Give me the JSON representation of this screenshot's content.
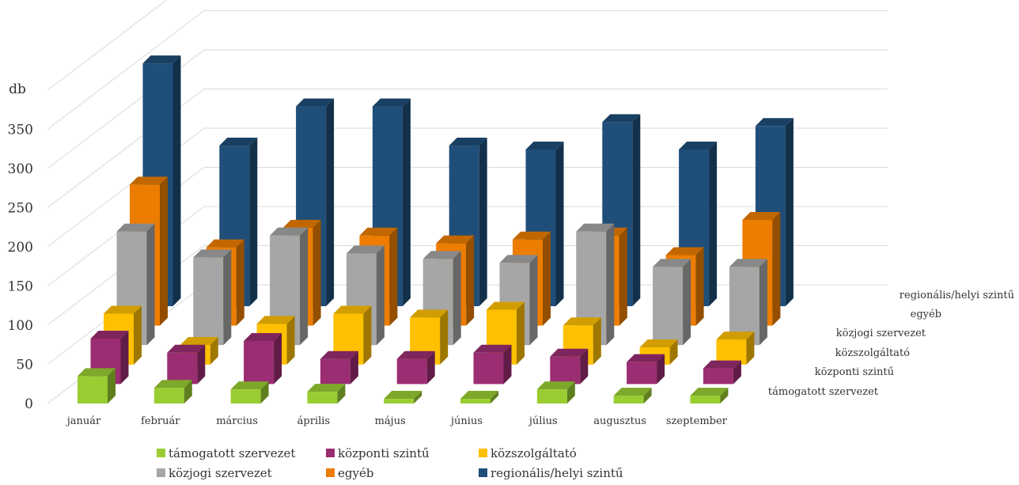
{
  "chart_data": {
    "type": "bar",
    "subtype": "3d-column",
    "title": "",
    "ylabel": "db",
    "ylim": [
      0,
      350
    ],
    "yticks": [
      0,
      50,
      100,
      150,
      200,
      250,
      300,
      350
    ],
    "grid": true,
    "legend_position": "bottom",
    "source_note": "",
    "categories": [
      "január",
      "február",
      "március",
      "április",
      "május",
      "június",
      "július",
      "augusztus",
      "szeptember"
    ],
    "series": [
      {
        "name": "támogatott szervezet",
        "color": "#9acd32",
        "values": [
          35,
          20,
          18,
          15,
          6,
          6,
          18,
          10,
          10
        ]
      },
      {
        "name": "központi szintű",
        "color": "#9b2d72",
        "values": [
          58,
          40,
          55,
          32,
          32,
          40,
          35,
          28,
          20
        ]
      },
      {
        "name": "közszolgáltató",
        "color": "#ffc000",
        "values": [
          65,
          25,
          52,
          65,
          60,
          70,
          50,
          22,
          32
        ]
      },
      {
        "name": "közjogi szervezet",
        "color": "#a6a6a6",
        "values": [
          145,
          112,
          140,
          117,
          110,
          105,
          145,
          100,
          100
        ]
      },
      {
        "name": "egyéb",
        "color": "#ed7d00",
        "values": [
          180,
          100,
          125,
          115,
          105,
          110,
          115,
          90,
          135
        ]
      },
      {
        "name": "regionális/helyi szintű",
        "color": "#1f4e79",
        "values": [
          310,
          205,
          255,
          255,
          205,
          200,
          235,
          200,
          230
        ]
      }
    ]
  }
}
